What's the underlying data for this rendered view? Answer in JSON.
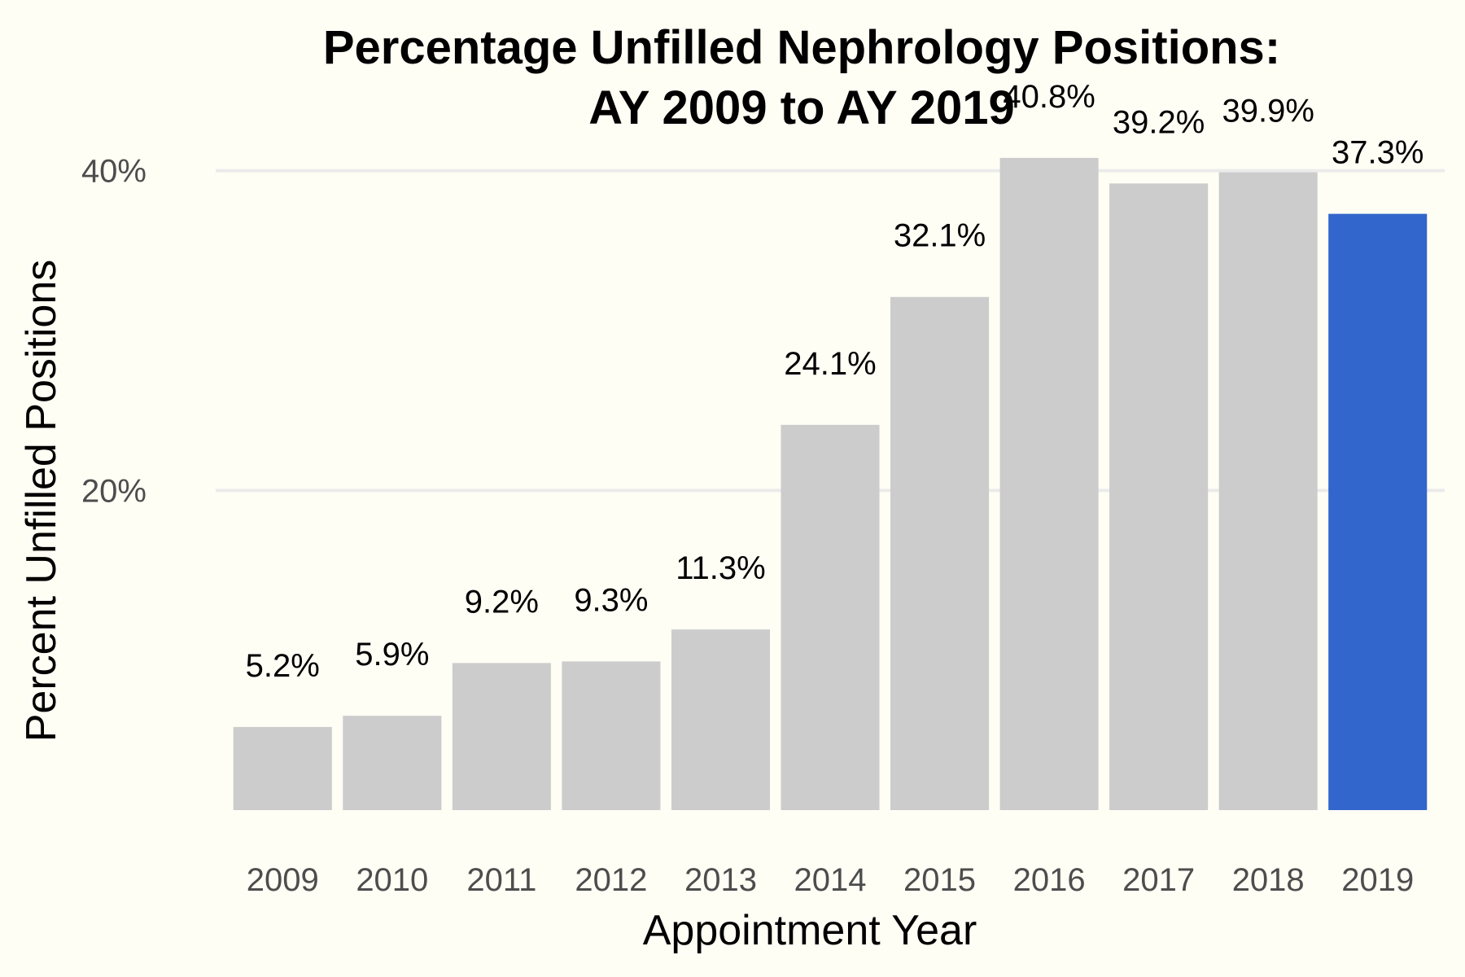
{
  "chart_data": {
    "type": "bar",
    "title": "Percentage Unfilled Nephrology Positions:",
    "subtitle": "AY 2009 to AY 2019",
    "xlabel": "Appointment Year",
    "ylabel": "Percent Unfilled Positions",
    "categories": [
      "2009",
      "2010",
      "2011",
      "2012",
      "2013",
      "2014",
      "2015",
      "2016",
      "2017",
      "2018",
      "2019"
    ],
    "values": [
      5.2,
      5.9,
      9.2,
      9.3,
      11.3,
      24.1,
      32.1,
      40.8,
      39.2,
      39.9,
      37.3
    ],
    "data_labels": [
      "5.2%",
      "5.9%",
      "9.2%",
      "9.3%",
      "11.3%",
      "24.1%",
      "32.1%",
      "40.8%",
      "39.2%",
      "39.9%",
      "37.3%"
    ],
    "highlight_category": "2019",
    "yticks": [
      20,
      40
    ],
    "ytick_labels": [
      "20%",
      "40%"
    ],
    "ylim": [
      0,
      41
    ],
    "grid": "horizontal",
    "legend": "none",
    "colors": {
      "bar": "#cccccc",
      "highlight": "#3366cc",
      "background": "#fffef5",
      "grid": "#ebebeb"
    }
  }
}
